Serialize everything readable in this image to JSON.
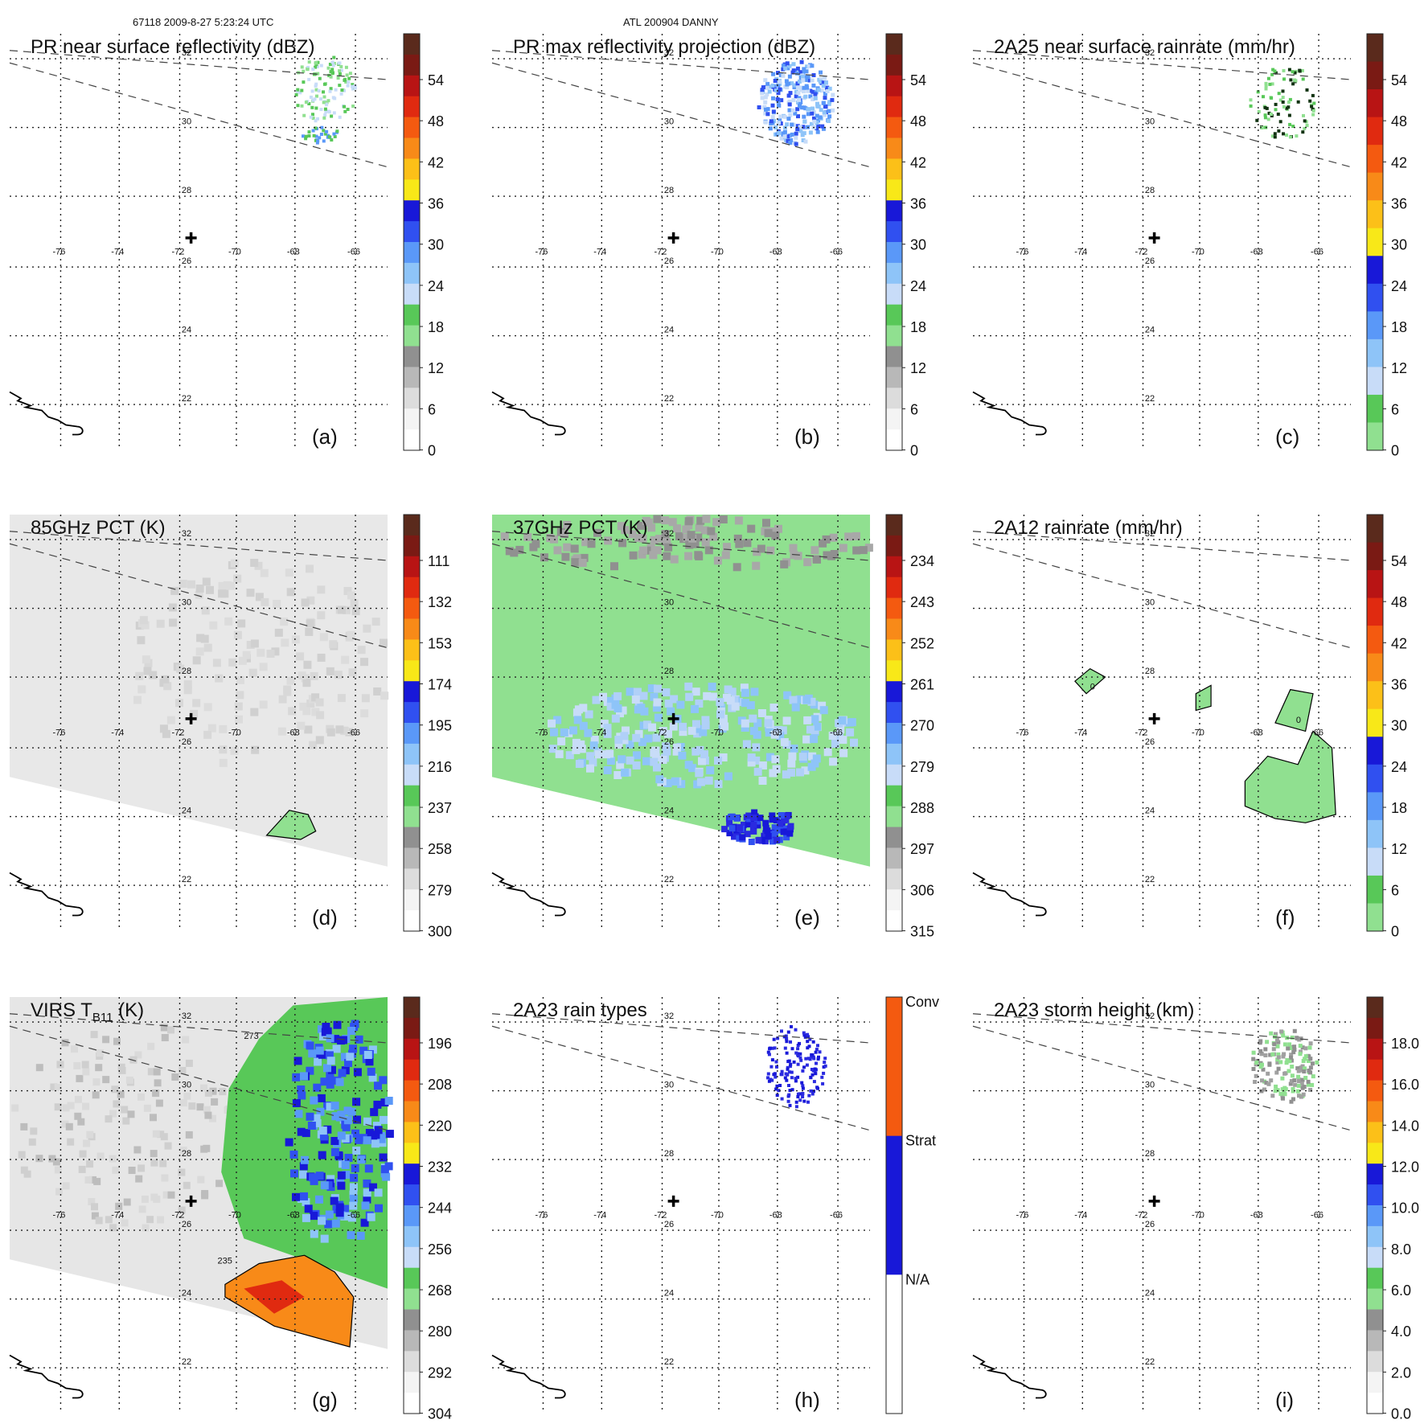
{
  "header": {
    "orbit_info": "67118 2009-8-27 5:23:24 UTC",
    "storm_info": "ATL 200904 DANNY"
  },
  "lat_labels": [
    "32",
    "30",
    "28",
    "26",
    "24",
    "22"
  ],
  "lon_labels": [
    "-76",
    "-74",
    "-72",
    "-70",
    "-68",
    "-66"
  ],
  "panels": [
    {
      "id": "a",
      "title": "PR near surface reflectivity (dBZ)",
      "label": "(a)",
      "colorbar": [
        "54",
        "48",
        "42",
        "36",
        "30",
        "24",
        "18",
        "12",
        "6",
        "0"
      ],
      "palette": "refl",
      "field": "pr_sfc"
    },
    {
      "id": "b",
      "title": "PR max reflectivity projection (dBZ)",
      "label": "(b)",
      "colorbar": [
        "54",
        "48",
        "42",
        "36",
        "30",
        "24",
        "18",
        "12",
        "6",
        "0"
      ],
      "palette": "refl",
      "field": "pr_max"
    },
    {
      "id": "c",
      "title": "2A25 near surface rainrate (mm/hr)",
      "label": "(c)",
      "colorbar": [
        "54",
        "48",
        "42",
        "36",
        "30",
        "24",
        "18",
        "12",
        "6",
        "0"
      ],
      "palette": "rain",
      "field": "rain25"
    },
    {
      "id": "d",
      "title": "85GHz PCT (K)",
      "label": "(d)",
      "colorbar": [
        "111",
        "132",
        "153",
        "174",
        "195",
        "216",
        "237",
        "258",
        "279",
        "300"
      ],
      "palette": "refl",
      "field": "pct85"
    },
    {
      "id": "e",
      "title": "37GHz PCT (K)",
      "label": "(e)",
      "colorbar": [
        "234",
        "243",
        "252",
        "261",
        "270",
        "279",
        "288",
        "297",
        "306",
        "315"
      ],
      "palette": "refl",
      "field": "pct37"
    },
    {
      "id": "f",
      "title": "2A12 rainrate (mm/hr)",
      "label": "(f)",
      "colorbar": [
        "54",
        "48",
        "42",
        "36",
        "30",
        "24",
        "18",
        "12",
        "6",
        "0"
      ],
      "palette": "rain",
      "field": "rain12",
      "contour_labels": [
        "0",
        "0"
      ]
    },
    {
      "id": "g",
      "title_main": "VIRS T",
      "title_sub": "B11",
      "title_tail": " (K)",
      "label": "(g)",
      "colorbar": [
        "196",
        "208",
        "220",
        "232",
        "244",
        "256",
        "268",
        "280",
        "292",
        "304"
      ],
      "palette": "refl",
      "field": "virs",
      "contour_labels": [
        "273",
        "235"
      ]
    },
    {
      "id": "h",
      "title": "2A23 rain types",
      "label": "(h)",
      "colorbar": [
        "Conv",
        "Strat",
        "N/A"
      ],
      "palette": "types",
      "field": "types"
    },
    {
      "id": "i",
      "title": "2A23 storm height (km)",
      "label": "(i)",
      "colorbar": [
        "18.0",
        "16.0",
        "14.0",
        "12.0",
        "10.0",
        "8.0",
        "6.0",
        "4.0",
        "2.0",
        "0.0"
      ],
      "palette": "refl",
      "field": "height"
    }
  ],
  "colors": {
    "refl_palette": [
      "#5a2a1c",
      "#7a1a14",
      "#b81414",
      "#e02a10",
      "#f45a10",
      "#f88a18",
      "#fcc018",
      "#f8e818",
      "#1818d8",
      "#3050f0",
      "#5a98f8",
      "#8ec4f8",
      "#c8dcf8",
      "#58c858",
      "#90e090",
      "#909090",
      "#b8b8b8",
      "#dcdcdc",
      "#f4f4f4",
      "#ffffff"
    ],
    "rain_palette": [
      "#5a2a1c",
      "#7a1a14",
      "#b81414",
      "#e02a10",
      "#f45a10",
      "#f88a18",
      "#fcc018",
      "#f8e818",
      "#1818d8",
      "#3050f0",
      "#5a98f8",
      "#8ec4f8",
      "#c8dcf8",
      "#58c858",
      "#90e090"
    ],
    "types_palette": [
      "#f45a10",
      "#1818d8",
      "#ffffff"
    ]
  }
}
